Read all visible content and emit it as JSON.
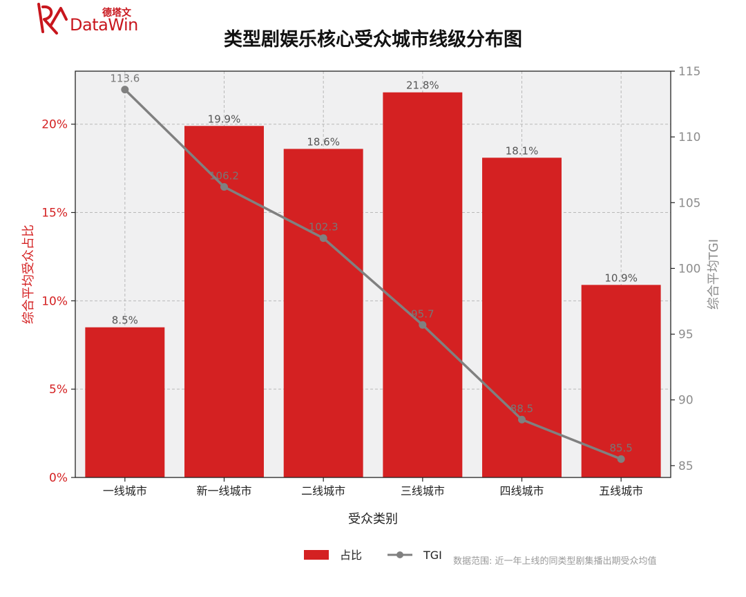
{
  "logo": {
    "cn": "德塔文",
    "en": "DataWin"
  },
  "note": "数据范围: 近一年上线的同类型剧集播出期受众均值",
  "colors": {
    "bar": "#d42122",
    "line": "#808080",
    "left_axis": "#d42122",
    "right_axis": "#8c8c8c",
    "plot_bg": "#f0f0f1"
  },
  "chart_data": {
    "type": "bar",
    "title": "类型剧娱乐核心受众城市线级分布图",
    "xlabel": "受众类别",
    "ylabel": "综合平均受众占比",
    "y2label": "综合平均TGI",
    "categories": [
      "一线城市",
      "新一线城市",
      "二线城市",
      "三线城市",
      "四线城市",
      "五线城市"
    ],
    "ylim": [
      0,
      23
    ],
    "y2lim": [
      84.1,
      115
    ],
    "yticks": [
      "0%",
      "5%",
      "10%",
      "15%",
      "20%"
    ],
    "y2ticks": [
      "85",
      "90",
      "95",
      "100",
      "105",
      "110",
      "115"
    ],
    "grid": true,
    "legend_position": "bottom",
    "series": [
      {
        "name": "占比",
        "type": "bar",
        "axis": "left",
        "values": [
          8.5,
          19.9,
          18.6,
          21.8,
          18.1,
          10.9
        ],
        "labels": [
          "8.5%",
          "19.9%",
          "18.6%",
          "21.8%",
          "18.1%",
          "10.9%"
        ]
      },
      {
        "name": "TGI",
        "type": "line",
        "axis": "right",
        "values": [
          113.6,
          106.2,
          102.3,
          95.7,
          88.5,
          85.5
        ],
        "labels": [
          "113.6",
          "106.2",
          "102.3",
          "95.7",
          "88.5",
          "85.5"
        ]
      }
    ]
  }
}
